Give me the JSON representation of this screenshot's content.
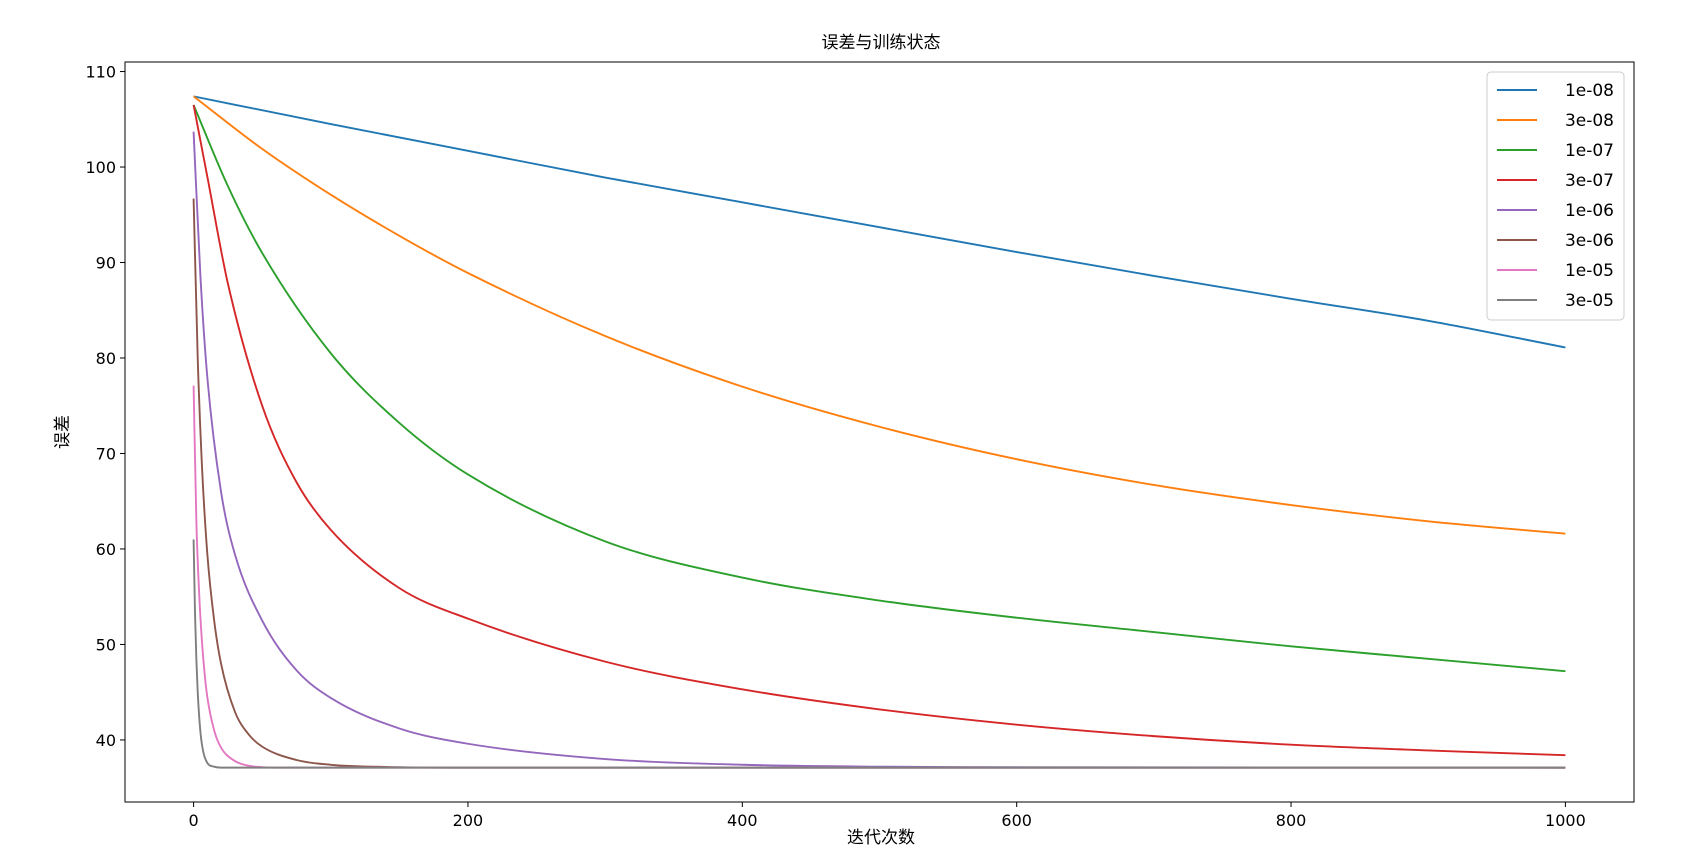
{
  "chart_data": {
    "type": "line",
    "title": "误差与训练状态",
    "xlabel": "迭代次数",
    "ylabel": "误差",
    "xlim": [
      -50,
      1050
    ],
    "ylim": [
      33.5,
      111
    ],
    "x_ticks": [
      0,
      200,
      400,
      600,
      800,
      1000
    ],
    "y_ticks": [
      40,
      50,
      60,
      70,
      80,
      90,
      100,
      110
    ],
    "grid": false,
    "legend_position": "top-right",
    "series": [
      {
        "name": "1e-08",
        "color": "#1f77b4",
        "x": [
          0,
          100,
          200,
          300,
          400,
          500,
          600,
          700,
          800,
          900,
          1000
        ],
        "y": [
          107.4,
          104.5,
          101.7,
          98.9,
          96.3,
          93.7,
          91.1,
          88.6,
          86.2,
          83.9,
          81.1
        ]
      },
      {
        "name": "3e-08",
        "color": "#ff7f0e",
        "x": [
          0,
          50,
          100,
          150,
          200,
          300,
          400,
          500,
          600,
          700,
          800,
          900,
          1000
        ],
        "y": [
          107.4,
          101.9,
          97.1,
          92.8,
          88.9,
          82.3,
          77.0,
          72.8,
          69.4,
          66.7,
          64.6,
          62.9,
          61.6
        ]
      },
      {
        "name": "1e-07",
        "color": "#2ca02c",
        "x": [
          0,
          25,
          50,
          100,
          150,
          200,
          300,
          400,
          500,
          600,
          700,
          800,
          900,
          1000
        ],
        "y": [
          106.5,
          98.0,
          91.0,
          80.5,
          73.2,
          67.8,
          60.8,
          57.0,
          54.6,
          52.8,
          51.3,
          49.8,
          48.5,
          47.2
        ]
      },
      {
        "name": "3e-07",
        "color": "#d62728",
        "x": [
          0,
          10,
          25,
          50,
          75,
          100,
          150,
          200,
          300,
          400,
          500,
          600,
          700,
          800,
          900,
          1000
        ],
        "y": [
          106.5,
          99.0,
          87.8,
          75.0,
          67.0,
          62.0,
          55.9,
          52.7,
          48.2,
          45.3,
          43.2,
          41.6,
          40.4,
          39.5,
          38.9,
          38.4
        ]
      },
      {
        "name": "1e-06",
        "color": "#9467bd",
        "x": [
          0,
          5,
          10,
          20,
          30,
          50,
          75,
          100,
          150,
          200,
          300,
          400,
          500,
          600,
          1000
        ],
        "y": [
          103.7,
          88.5,
          78.0,
          66.0,
          59.5,
          52.5,
          47.3,
          44.4,
          41.2,
          39.6,
          38.0,
          37.4,
          37.2,
          37.15,
          37.1
        ]
      },
      {
        "name": "3e-06",
        "color": "#8c564b",
        "x": [
          0,
          3,
          6,
          10,
          15,
          20,
          30,
          40,
          50,
          75,
          100,
          150,
          200,
          300,
          1000
        ],
        "y": [
          96.7,
          80.0,
          69.0,
          59.5,
          52.5,
          48.0,
          43.0,
          40.6,
          39.3,
          37.9,
          37.4,
          37.15,
          37.1,
          37.1,
          37.1
        ]
      },
      {
        "name": "1e-05",
        "color": "#e377c2",
        "x": [
          0,
          2,
          4,
          6,
          8,
          10,
          15,
          20,
          30,
          40,
          50,
          60,
          1000
        ],
        "y": [
          77.1,
          63.0,
          55.5,
          50.5,
          47.0,
          44.5,
          41.0,
          39.2,
          37.8,
          37.3,
          37.15,
          37.1,
          37.1
        ]
      },
      {
        "name": "3e-05",
        "color": "#7f7f7f",
        "x": [
          0,
          1,
          2,
          3,
          5,
          7,
          10,
          15,
          20,
          30,
          1000
        ],
        "y": [
          61.0,
          53.5,
          48.5,
          45.0,
          40.8,
          38.8,
          37.6,
          37.2,
          37.1,
          37.1,
          37.1
        ]
      }
    ]
  }
}
